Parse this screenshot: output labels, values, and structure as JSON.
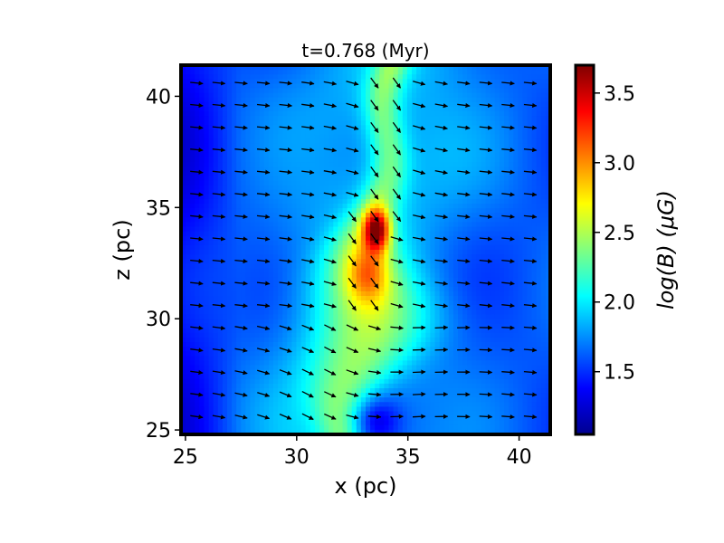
{
  "chart_data": {
    "type": "heatmap",
    "title": "t=0.768 (Myr)",
    "xlabel": "x (pc)",
    "ylabel": "z (pc)",
    "xlim": [
      24.8,
      41.4
    ],
    "ylim": [
      24.8,
      41.4
    ],
    "xticks": [
      25,
      30,
      35,
      40
    ],
    "yticks": [
      25,
      30,
      35,
      40
    ],
    "colorbar": {
      "label": "log(B) (μG)",
      "range": [
        1.05,
        3.7
      ],
      "ticks": [
        1.5,
        2.0,
        2.5,
        3.0,
        3.5
      ],
      "tick_labels": [
        "1.5",
        "2.0",
        "2.5",
        "3.0",
        "3.5"
      ],
      "colormap": "jet"
    },
    "field": {
      "background": 1.6,
      "sheet_center_top": [
        34.4,
        41.2
      ],
      "sheet_center_bottom": [
        32.2,
        25.0
      ],
      "peak": {
        "x": 33.6,
        "z": 34.0,
        "value": 3.6
      },
      "secondary_peak": {
        "x": 33.2,
        "z": 32.0,
        "value": 2.7
      }
    },
    "vector_field": {
      "description": "magnetic field direction arrows",
      "x_start": 25.5,
      "x_step": 1.0,
      "x_count": 16,
      "z_start": 25.6,
      "z_step": 1.0,
      "z_count": 16
    }
  }
}
